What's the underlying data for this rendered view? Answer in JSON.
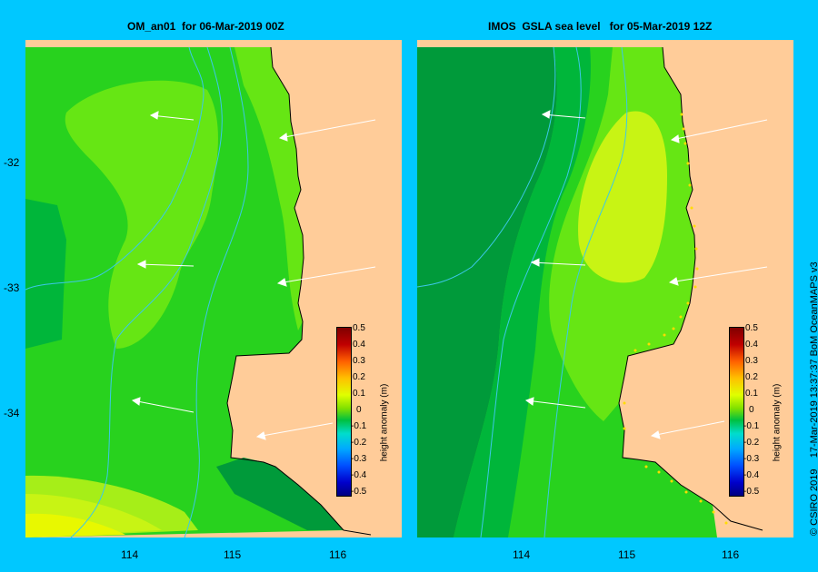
{
  "panels": [
    {
      "title": "OM_an01  for 06-Mar-2019 00Z"
    },
    {
      "title": "IMOS  GSLA sea level   for 05-Mar-2019 12Z"
    }
  ],
  "axes": {
    "lat_ticks": [
      "-32",
      "-33",
      "-34"
    ],
    "lon_ticks": [
      "114",
      "115",
      "116"
    ]
  },
  "colorbar": {
    "label": "height anomaly (m)",
    "ticks": [
      "0.5",
      "0.4",
      "0.3",
      "0.2",
      "0.1",
      "0",
      "-0.1",
      "-0.2",
      "-0.3",
      "-0.4",
      "-0.5"
    ],
    "colors": [
      "#000080",
      "#0000cc",
      "#0050ff",
      "#00aaff",
      "#00ddcc",
      "#00c040",
      "#80e000",
      "#e0ff00",
      "#ffc000",
      "#ff6000",
      "#c00000",
      "#800000"
    ]
  },
  "colors": {
    "background": "#00c8ff",
    "land": "#ffcc99",
    "level_neg_0_1": "#009a3a",
    "level_neg_0_05": "#00b63a",
    "level_0": "#28d21e",
    "level_pos_0_05": "#66e614",
    "level_pos_0_1": "#a6ee18",
    "level_pos_0_15": "#c8f414",
    "level_pos_0_2": "#e8f800"
  },
  "credit": "© CSIRO 2019    17-Mar-2019 13:37:37 BoM OceanMAPS v3"
}
